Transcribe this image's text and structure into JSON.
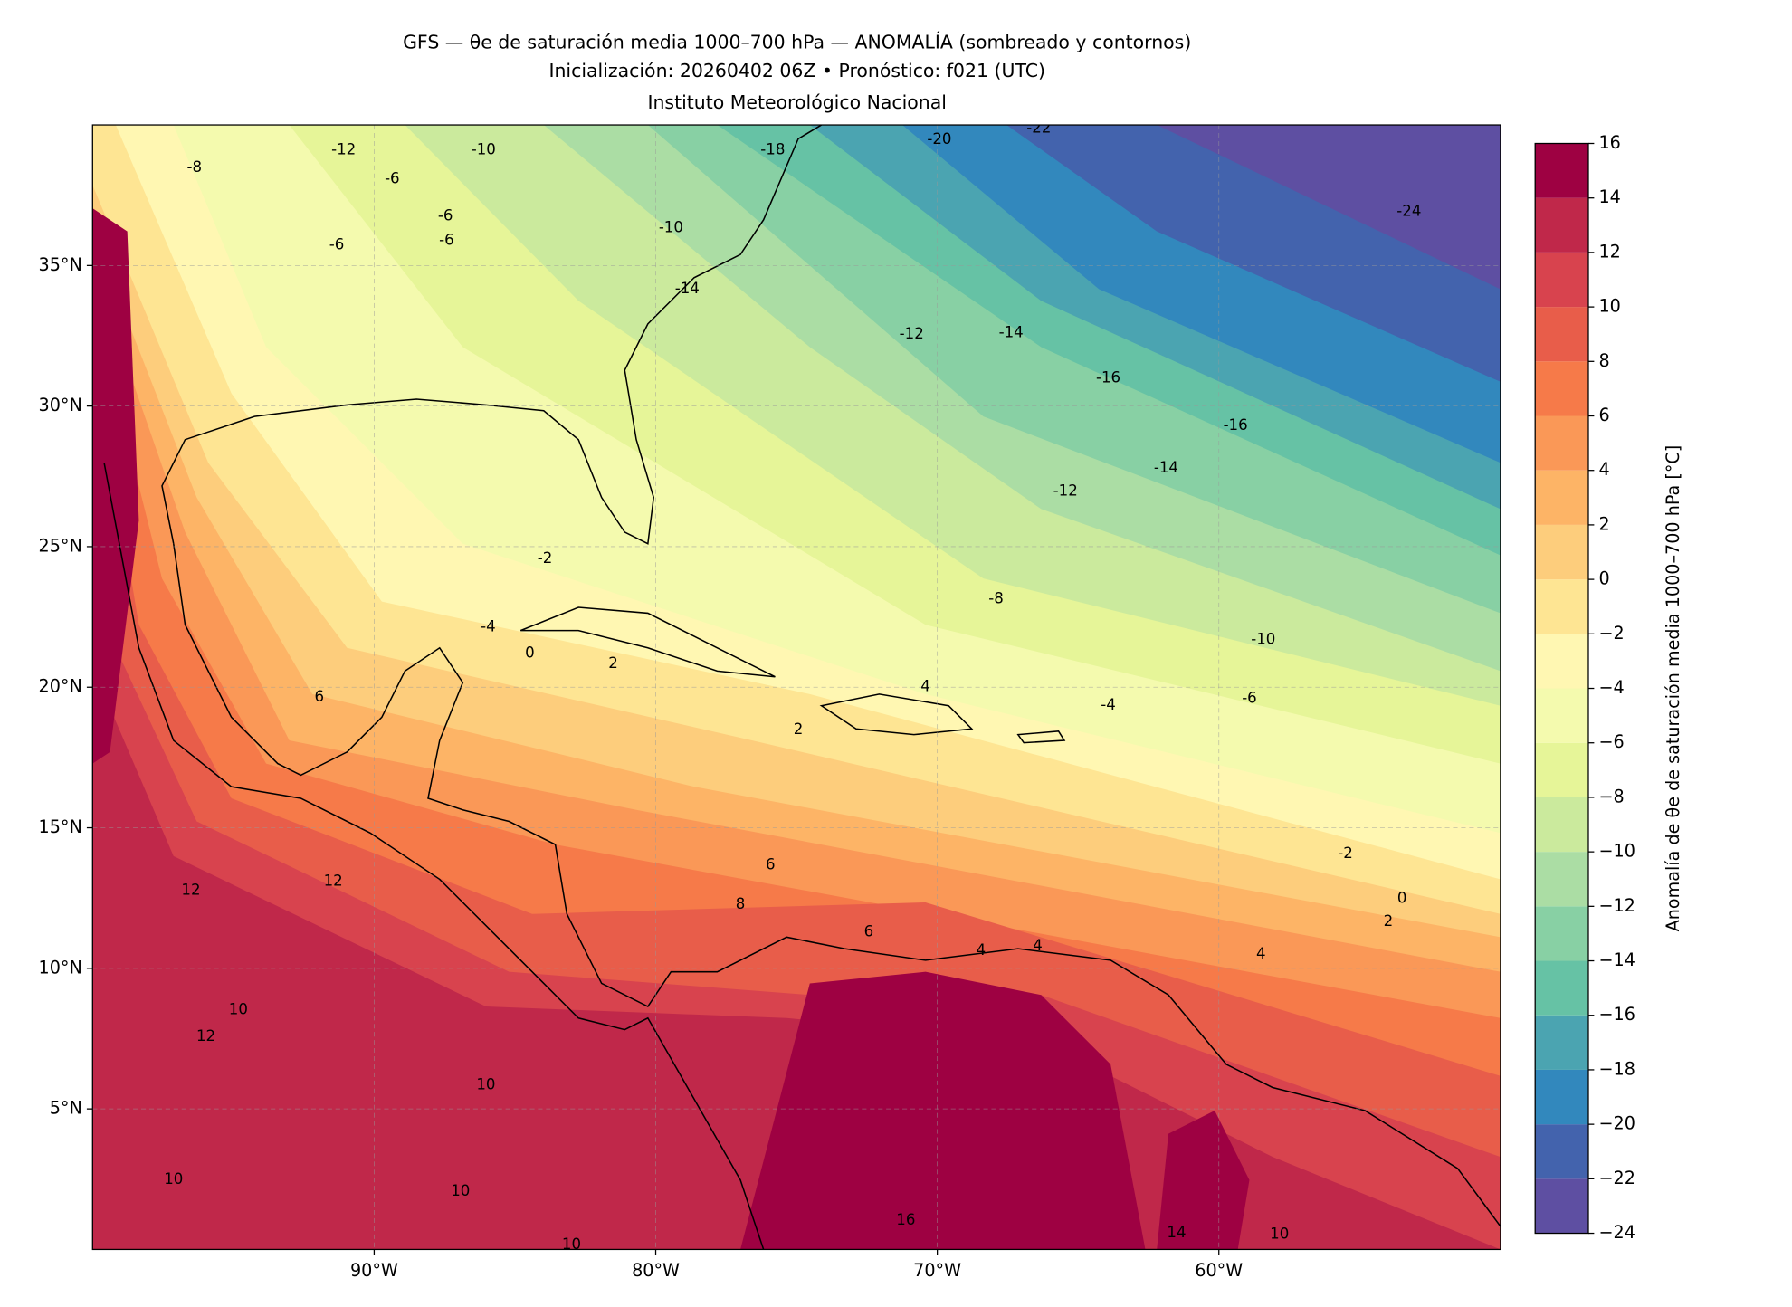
{
  "chart_data": {
    "type": "contour-map",
    "title": "GFS — θe de saturación media 1000–700 hPa — ANOMALÍA (sombreado y contornos)",
    "subtitle": "Inicialización: 20260402 06Z   •   Pronóstico: f021 (UTC)",
    "credit": "Instituto Meteorológico Nacional",
    "xlim": [
      -100,
      -50
    ],
    "ylim": [
      0,
      40
    ],
    "xticks": [
      {
        "value": -90,
        "label": "90°W"
      },
      {
        "value": -80,
        "label": "80°W"
      },
      {
        "value": -70,
        "label": "70°W"
      },
      {
        "value": -60,
        "label": "60°W"
      }
    ],
    "yticks": [
      {
        "value": 5,
        "label": "5°N"
      },
      {
        "value": 10,
        "label": "10°N"
      },
      {
        "value": 15,
        "label": "15°N"
      },
      {
        "value": 20,
        "label": "20°N"
      },
      {
        "value": 25,
        "label": "25°N"
      },
      {
        "value": 30,
        "label": "30°N"
      },
      {
        "value": 35,
        "label": "35°N"
      }
    ],
    "grid": true,
    "colorbar": {
      "label": "Anomalía de θe de saturación media 1000–700 hPa [°C]",
      "ticks": [
        {
          "value": -24,
          "label": "−24"
        },
        {
          "value": -22,
          "label": "−22"
        },
        {
          "value": -20,
          "label": "−20"
        },
        {
          "value": -18,
          "label": "−18"
        },
        {
          "value": -16,
          "label": "−16"
        },
        {
          "value": -14,
          "label": "−14"
        },
        {
          "value": -12,
          "label": "−12"
        },
        {
          "value": -10,
          "label": "−10"
        },
        {
          "value": -8,
          "label": "−8"
        },
        {
          "value": -6,
          "label": "−6"
        },
        {
          "value": -4,
          "label": "−4"
        },
        {
          "value": -2,
          "label": "−2"
        },
        0,
        2,
        4,
        6,
        8,
        10,
        12,
        14,
        16
      ],
      "colors": [
        "#5e4fa2",
        "#4363ad",
        "#3288bd",
        "#4ba4b1",
        "#66c2a5",
        "#88d0a4",
        "#abdda4",
        "#cbea9d",
        "#e6f598",
        "#f4faae",
        "#fff7b2",
        "#fee593",
        "#fdcd7c",
        "#fdb466",
        "#fa9857",
        "#f67a49",
        "#e85d4a",
        "#d8434e",
        "#c0284a",
        "#9e0142"
      ]
    },
    "contour_labels": [
      -20,
      -22,
      -24,
      -18,
      -10,
      -12,
      -8,
      -6,
      -6,
      -6,
      -6,
      -10,
      -14,
      -12,
      -14,
      -16,
      -16,
      -14,
      -12,
      -8,
      -10,
      -6,
      -4,
      -2,
      0,
      2,
      4,
      6,
      8,
      4,
      2,
      2,
      -4,
      -2,
      0,
      6,
      12,
      12,
      10,
      12,
      10,
      10,
      10,
      10,
      14,
      10,
      16,
      4,
      4,
      6
    ]
  }
}
